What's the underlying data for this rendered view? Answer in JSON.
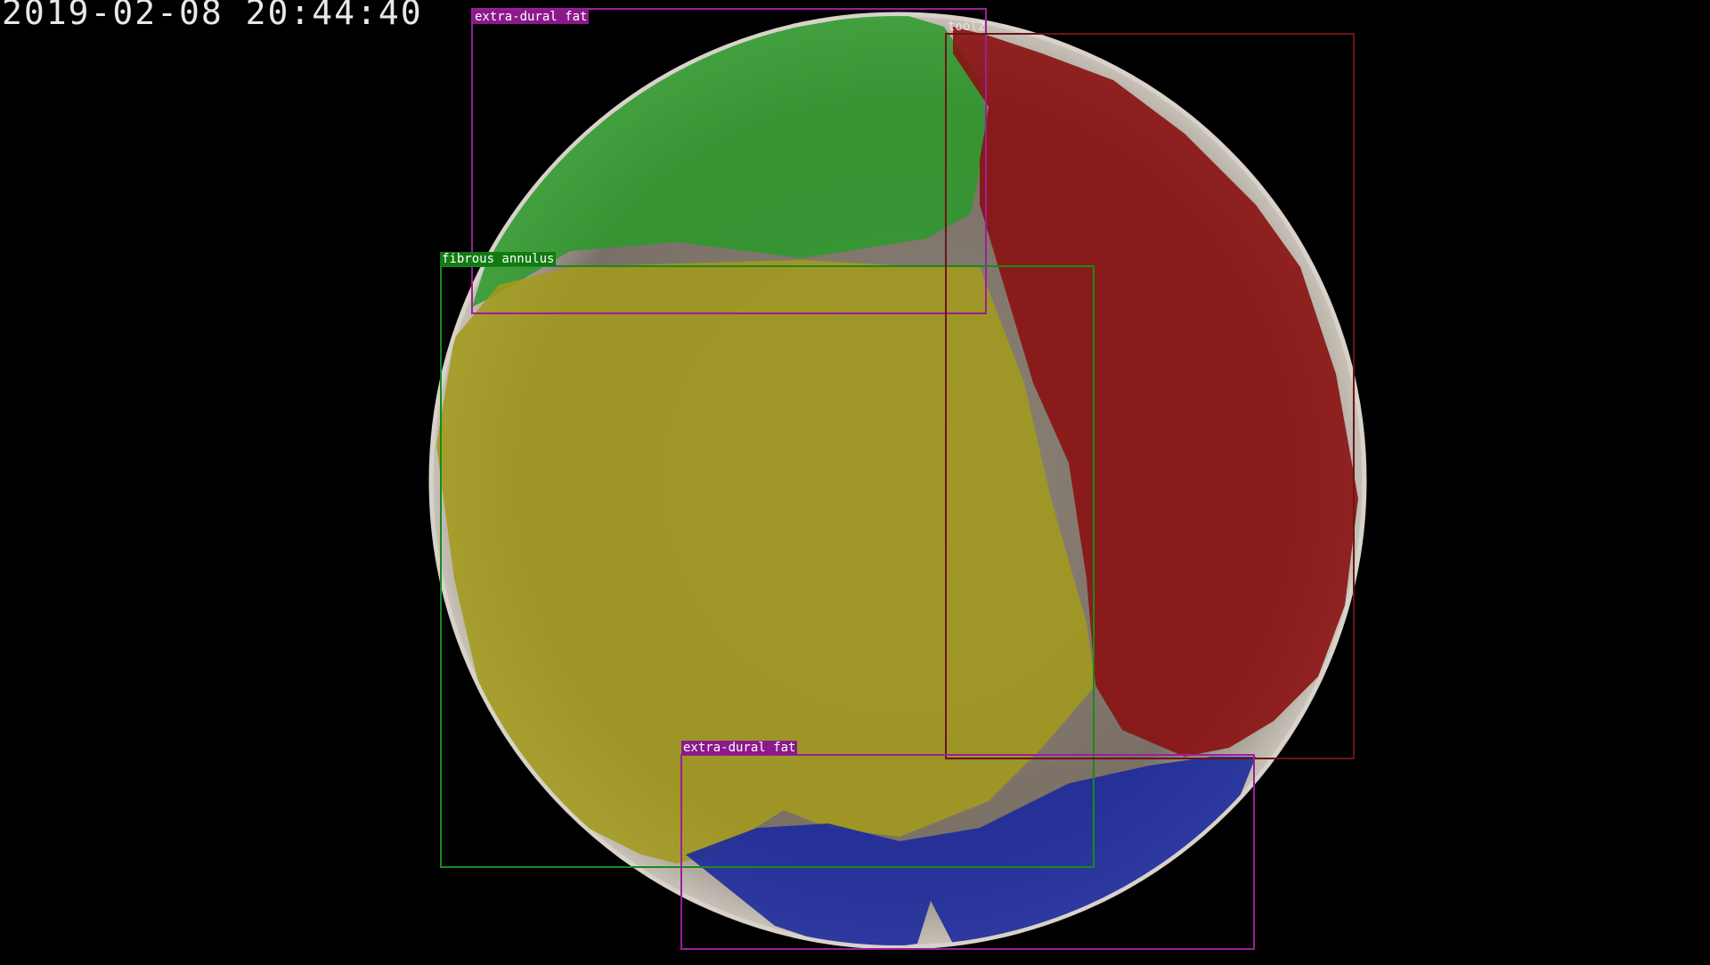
{
  "timestamp": "2019-02-08 20:44:40",
  "annotations": {
    "fat_top": {
      "label": "extra-dural fat",
      "color": "#9b1f9b"
    },
    "fibrous": {
      "label": "fibrous annulus",
      "color": "#1a8a1a"
    },
    "tool": {
      "label": "tool2",
      "color": "#6b1515"
    },
    "fat_bottom": {
      "label": "extra-dural fat",
      "color": "#9b1f9b"
    }
  },
  "regions": {
    "green": "#2a9a2a",
    "yellow": "#a39a1e",
    "red": "#8a1212",
    "blue": "#1c2a9c"
  }
}
